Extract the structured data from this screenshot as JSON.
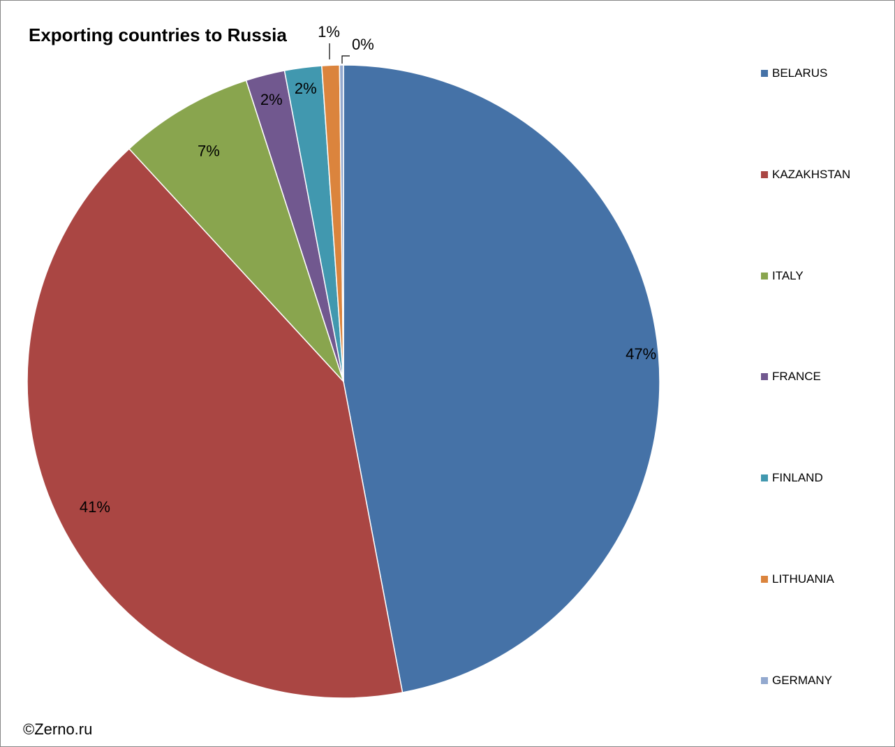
{
  "chart_data": {
    "type": "pie",
    "title": "Exporting countries to Russia",
    "categories": [
      "BELARUS",
      "KAZAKHSTAN",
      "ITALY",
      "FRANCE",
      "FINLAND",
      "LITHUANIA",
      "GERMANY"
    ],
    "values": [
      47.2,
      41.3,
      6.9,
      2.0,
      1.9,
      0.9,
      0.2
    ],
    "data_labels": [
      "47%",
      "41%",
      "7%",
      "2%",
      "2%",
      "1%",
      "0%"
    ],
    "colors": [
      "#4572A7",
      "#AA4643",
      "#89A54E",
      "#71588F",
      "#4198AF",
      "#DB843D",
      "#93A9CF"
    ],
    "start_angle": "12 o'clock",
    "direction": "clockwise",
    "legend_position": "right"
  },
  "footer": {
    "copyright": "©Zerno.ru"
  }
}
